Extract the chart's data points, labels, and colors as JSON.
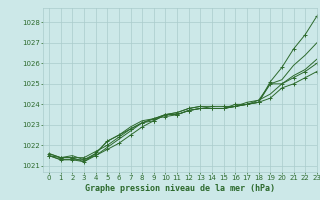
{
  "background_color": "#cce8e8",
  "grid_color": "#aacccc",
  "line_color": "#2d6a2d",
  "marker_color": "#2d6a2d",
  "xlabel": "Graphe pression niveau de la mer (hPa)",
  "xlabel_fontsize": 6.0,
  "xlim": [
    -0.5,
    23
  ],
  "ylim": [
    1020.7,
    1028.7
  ],
  "yticks": [
    1021,
    1022,
    1023,
    1024,
    1025,
    1026,
    1027,
    1028
  ],
  "xticks": [
    0,
    1,
    2,
    3,
    4,
    5,
    6,
    7,
    8,
    9,
    10,
    11,
    12,
    13,
    14,
    15,
    16,
    17,
    18,
    19,
    20,
    21,
    22,
    23
  ],
  "series": [
    [
      1021.5,
      1021.3,
      1021.3,
      1021.3,
      1021.5,
      1021.8,
      1022.1,
      1022.5,
      1022.9,
      1023.2,
      1023.5,
      1023.6,
      1023.8,
      1023.9,
      1023.9,
      1023.9,
      1023.9,
      1024.0,
      1024.1,
      1025.1,
      1025.8,
      1026.7,
      1027.4,
      1028.3
    ],
    [
      1021.5,
      1021.3,
      1021.3,
      1021.2,
      1021.5,
      1021.9,
      1022.3,
      1022.7,
      1023.1,
      1023.3,
      1023.5,
      1023.5,
      1023.7,
      1023.8,
      1023.8,
      1023.8,
      1023.9,
      1024.1,
      1024.2,
      1025.0,
      1025.2,
      1025.9,
      1026.4,
      1027.0
    ],
    [
      1021.5,
      1021.4,
      1021.4,
      1021.4,
      1021.7,
      1022.0,
      1022.4,
      1022.8,
      1023.1,
      1023.2,
      1023.5,
      1023.5,
      1023.7,
      1023.8,
      1023.8,
      1023.8,
      1023.9,
      1024.0,
      1024.1,
      1025.0,
      1025.0,
      1025.3,
      1025.6,
      1026.0
    ],
    [
      1021.6,
      1021.4,
      1021.5,
      1021.3,
      1021.6,
      1022.2,
      1022.5,
      1022.9,
      1023.2,
      1023.3,
      1023.5,
      1023.6,
      1023.8,
      1023.9,
      1023.8,
      1023.8,
      1023.9,
      1024.0,
      1024.2,
      1024.5,
      1025.0,
      1025.4,
      1025.7,
      1026.2
    ],
    [
      1021.6,
      1021.4,
      1021.4,
      1021.2,
      1021.6,
      1022.2,
      1022.5,
      1022.8,
      1023.1,
      1023.3,
      1023.4,
      1023.5,
      1023.7,
      1023.8,
      1023.8,
      1023.8,
      1024.0,
      1024.0,
      1024.1,
      1024.3,
      1024.8,
      1025.0,
      1025.3,
      1025.6
    ]
  ],
  "marker_series": [
    0,
    2,
    4
  ],
  "tick_fontsize": 5.0,
  "tick_color": "#2d6a2d",
  "ytick_fontsize": 5.0
}
